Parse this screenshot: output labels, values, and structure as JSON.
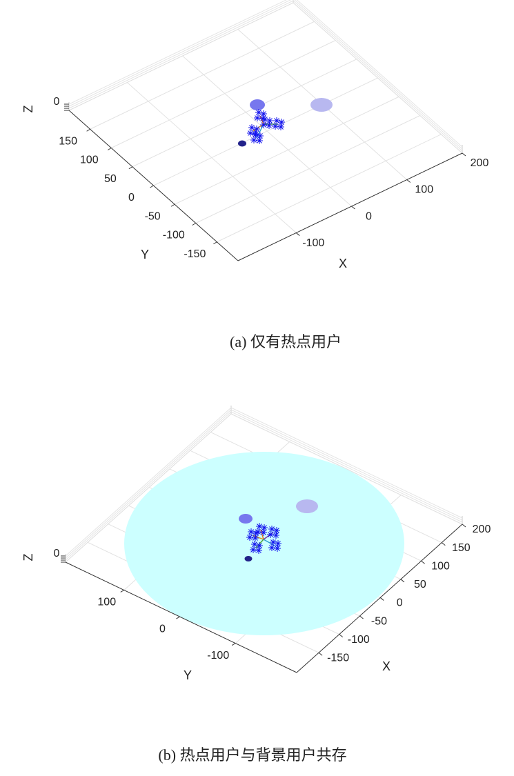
{
  "chart_data": [
    {
      "type": "scatter3d",
      "caption": "(a) 仅有热点用户",
      "xlabel": "X",
      "ylabel": "Y",
      "zlabel": "Z",
      "xlim": [
        -205,
        200
      ],
      "xticks": [
        -100,
        0,
        100,
        200
      ],
      "ylim": [
        200,
        -200
      ],
      "yticks": [
        150,
        100,
        50,
        0,
        -50,
        -100,
        -150
      ],
      "zticks": [
        0
      ]
    },
    {
      "type": "scatter3d",
      "caption": "(b) 热点用户与背景用户共存",
      "xlabel": "X",
      "ylabel": "Y",
      "zlabel": "Z",
      "xlim": [
        -204,
        200
      ],
      "xticks": [
        -150,
        -100,
        -50,
        0,
        50,
        100,
        150,
        200
      ],
      "ylim": [
        205,
        -210
      ],
      "yticks": [
        100,
        0,
        -100
      ],
      "zticks": [
        0
      ]
    }
  ]
}
